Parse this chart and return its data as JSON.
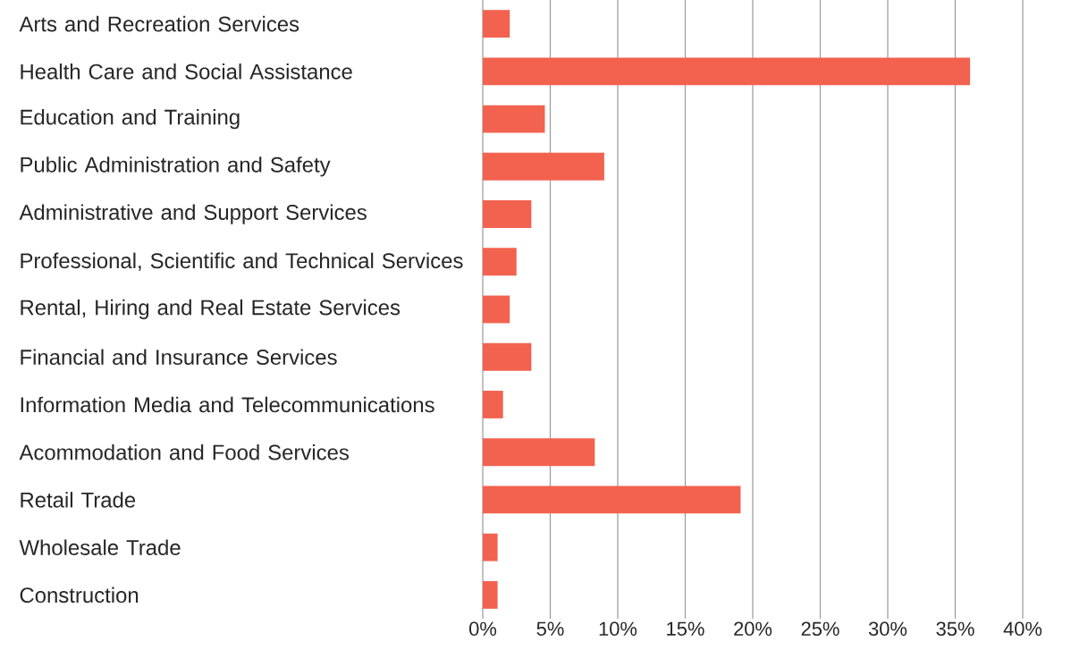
{
  "chart_data": {
    "type": "bar",
    "orientation": "horizontal",
    "color": "#f2624f",
    "categories": [
      "Arts and Recreation Services",
      "Health Care and Social Assistance",
      "Education and Training",
      "Public Administration and Safety",
      "Administrative and Support Services",
      "Professional, Scientific and Technical Services",
      "Rental, Hiring and Real Estate Services",
      "Financial and Insurance Services",
      "Information Media and Telecommunications",
      "Acommodation and Food Services",
      "Retail Trade",
      "Wholesale Trade",
      "Construction"
    ],
    "values": [
      2.0,
      36.1,
      4.6,
      9.0,
      3.6,
      2.5,
      2.0,
      3.6,
      1.5,
      8.3,
      19.1,
      1.1,
      1.1
    ],
    "xlim": [
      0,
      40
    ],
    "xticks": [
      {
        "value": 0,
        "label": "0%"
      },
      {
        "value": 5,
        "label": "5%"
      },
      {
        "value": 10,
        "label": "10%"
      },
      {
        "value": 15,
        "label": "15%"
      },
      {
        "value": 20,
        "label": "20%"
      },
      {
        "value": 25,
        "label": "25%"
      },
      {
        "value": 30,
        "label": "30%"
      },
      {
        "value": 35,
        "label": "35%"
      },
      {
        "value": 40,
        "label": "40%"
      }
    ],
    "grid": "x"
  }
}
